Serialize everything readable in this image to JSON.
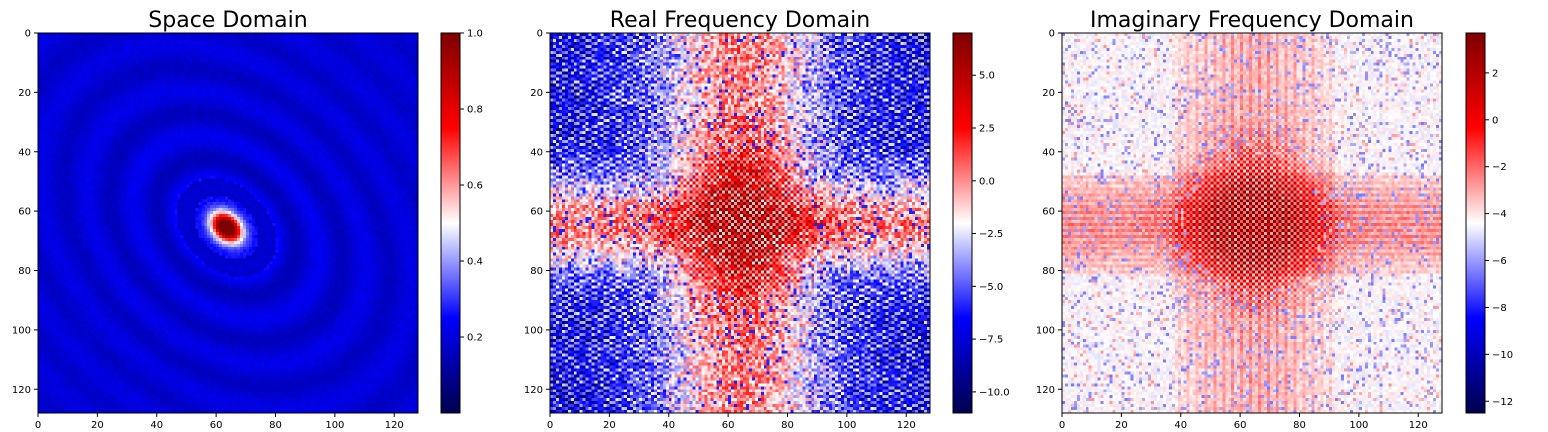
{
  "colors": {
    "colormap": [
      "#00004c",
      "#0000ff",
      "#ffffff",
      "#ff0000",
      "#7f0000"
    ],
    "axis": "#000000",
    "background": "#ffffff"
  },
  "chart_data": [
    {
      "type": "heatmap",
      "title": "Space Domain",
      "xlabel": "",
      "ylabel": "",
      "image_shape": [
        128,
        128
      ],
      "x_ticks": [
        0,
        20,
        40,
        60,
        80,
        100,
        120
      ],
      "y_ticks": [
        0,
        20,
        40,
        60,
        80,
        100,
        120
      ],
      "y_axis_inverted": true,
      "colormap": "seismic",
      "colorbar": {
        "range": [
          0.0,
          1.0
        ],
        "ticks": [
          0.2,
          0.4,
          0.6,
          0.8,
          1.0
        ],
        "tick_labels": [
          "0.2",
          "0.4",
          "0.6",
          "0.8",
          "1.0"
        ]
      },
      "pattern": "elliptical ripple rings around a bright red peak near (63, 65)",
      "peak": [
        63,
        65
      ]
    },
    {
      "type": "heatmap",
      "title": "Real Frequency Domain",
      "xlabel": "",
      "ylabel": "",
      "image_shape": [
        128,
        128
      ],
      "x_ticks": [
        0,
        20,
        40,
        60,
        80,
        100,
        120
      ],
      "y_ticks": [
        0,
        20,
        40,
        60,
        80,
        100,
        120
      ],
      "y_axis_inverted": true,
      "colormap": "seismic",
      "colorbar": {
        "range": [
          -11.0,
          7.0
        ],
        "ticks": [
          -10.0,
          -7.5,
          -5.0,
          -2.5,
          0.0,
          2.5,
          5.0
        ],
        "tick_labels": [
          "−10.0",
          "−7.5",
          "−5.0",
          "−2.5",
          "0.0",
          "2.5",
          "5.0"
        ]
      },
      "pattern": "noisy cross pattern with red checkerboard core near center, blue striped corners",
      "peak": [
        64,
        64
      ]
    },
    {
      "type": "heatmap",
      "title": "Imaginary Frequency Domain",
      "xlabel": "",
      "ylabel": "",
      "image_shape": [
        128,
        128
      ],
      "x_ticks": [
        0,
        20,
        40,
        60,
        80,
        100,
        120
      ],
      "y_ticks": [
        0,
        20,
        40,
        60,
        80,
        100,
        120
      ],
      "y_axis_inverted": true,
      "colormap": "seismic",
      "colorbar": {
        "range": [
          -12.5,
          3.7
        ],
        "ticks": [
          -12,
          -10,
          -8,
          -6,
          -4,
          -2,
          0,
          2
        ],
        "tick_labels": [
          "−12",
          "−10",
          "−8",
          "−6",
          "−4",
          "−2",
          "0",
          "2"
        ]
      },
      "pattern": "mostly white with red vertical and horizontal bands crossing near center and red checkerboard core",
      "peak": [
        64,
        64
      ]
    }
  ]
}
